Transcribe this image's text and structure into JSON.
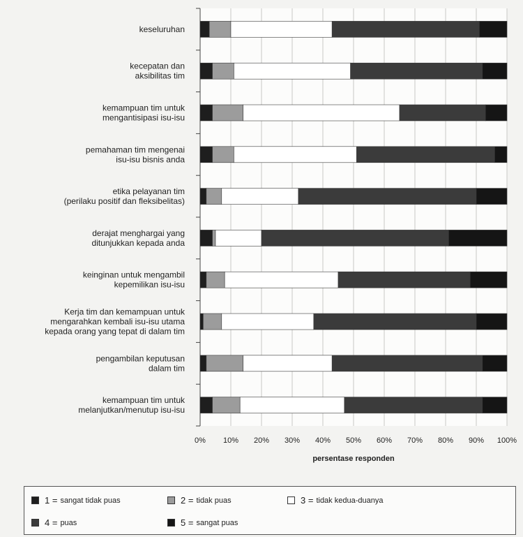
{
  "chart_data": {
    "type": "bar",
    "stacked": true,
    "orientation": "horizontal",
    "xlabel": "persentase responden",
    "xlim": [
      0,
      100
    ],
    "x_ticks": [
      "0%",
      "10%",
      "20%",
      "30%",
      "40%",
      "50%",
      "60%",
      "70%",
      "80%",
      "90%",
      "100%"
    ],
    "categories": [
      [
        "keseluruhan"
      ],
      [
        "kecepatan dan",
        "aksibilitas tim"
      ],
      [
        "kemampuan tim untuk",
        "mengantisipasi isu-isu"
      ],
      [
        "pemahaman tim mengenai",
        "isu-isu bisnis anda"
      ],
      [
        "etika pelayanan tim",
        "(perilaku positif dan fleksibelitas)"
      ],
      [
        "derajat menghargai yang",
        "ditunjukkan kepada anda"
      ],
      [
        "keinginan untuk mengambil",
        "kepemilikan isu-isu"
      ],
      [
        "Kerja tim dan kemampuan untuk",
        "mengarahkan kembali isu-isu utama",
        "kepada orang yang tepat di dalam tim"
      ],
      [
        "pengambilan keputusan",
        "dalam tim"
      ],
      [
        "kemampuan tim untuk",
        "melanjutkan/menutup isu-isu"
      ]
    ],
    "series": [
      {
        "code": "1",
        "name": "sangat tidak puas",
        "color": "#1e1e1e",
        "values": [
          3,
          4,
          4,
          4,
          2,
          4,
          2,
          1,
          2,
          4
        ]
      },
      {
        "code": "2",
        "name": "tidak puas",
        "color": "#9c9c9c",
        "values": [
          7,
          7,
          10,
          7,
          5,
          1,
          6,
          6,
          12,
          9
        ]
      },
      {
        "code": "3",
        "name": "tidak kedua-duanya",
        "color": "#ffffff",
        "values": [
          33,
          38,
          51,
          40,
          25,
          15,
          37,
          30,
          29,
          34
        ]
      },
      {
        "code": "4",
        "name": "puas",
        "color": "#3b3b3b",
        "values": [
          48,
          43,
          28,
          45,
          58,
          61,
          43,
          53,
          49,
          45
        ]
      },
      {
        "code": "5",
        "name": "sangat puas",
        "color": "#151515",
        "values": [
          9,
          8,
          7,
          4,
          10,
          19,
          12,
          10,
          8,
          8
        ]
      }
    ]
  }
}
